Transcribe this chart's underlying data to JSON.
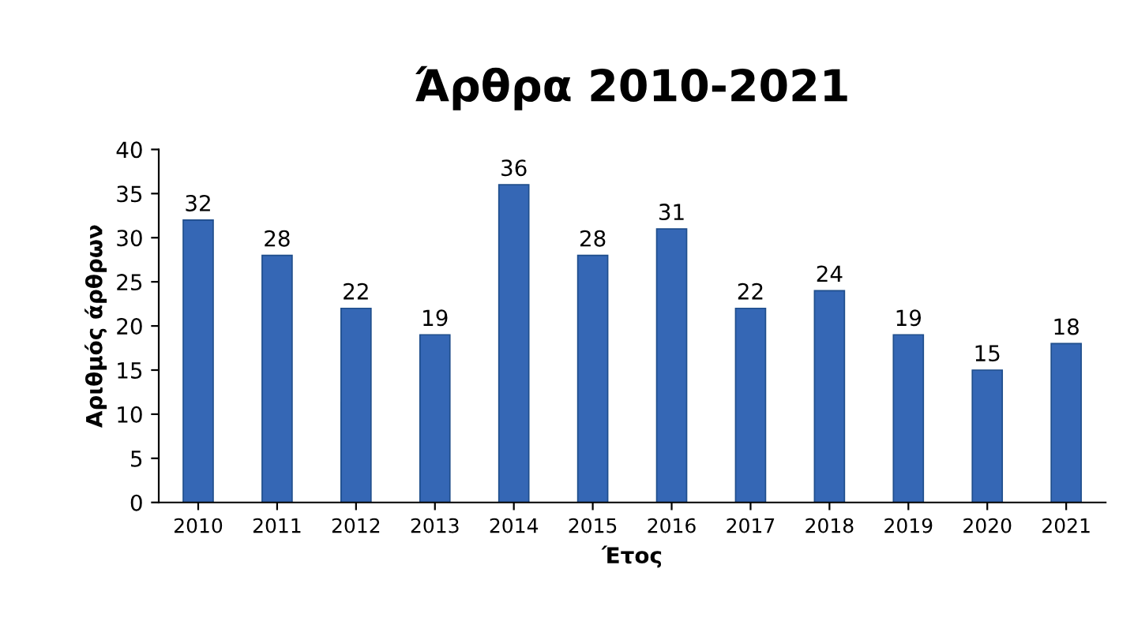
{
  "chart_data": {
    "type": "bar",
    "title": "Άρθρα 2010-2021",
    "xlabel": "Έτος",
    "ylabel": "Αριθμός άρθρων",
    "categories": [
      "2010",
      "2011",
      "2012",
      "2013",
      "2014",
      "2015",
      "2016",
      "2017",
      "2018",
      "2019",
      "2020",
      "2021"
    ],
    "values": [
      32,
      28,
      22,
      19,
      36,
      28,
      31,
      22,
      24,
      19,
      15,
      18
    ],
    "color": "#3567b5",
    "ylim": [
      0,
      40
    ],
    "yticks": [
      0,
      5,
      10,
      15,
      20,
      25,
      30,
      35,
      40
    ],
    "grid": false,
    "data_labels": true
  }
}
